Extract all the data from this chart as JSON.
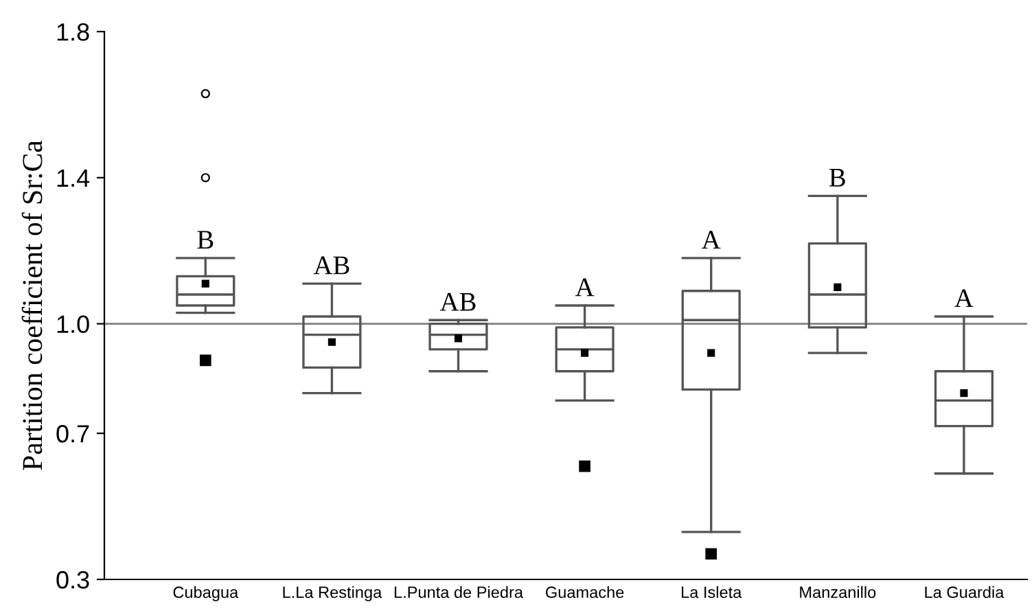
{
  "chart_data": {
    "type": "box",
    "ylabel": "Partition coefficient of Sr:Ca",
    "categories": [
      "Cubagua",
      "L.La Restinga",
      "L.Punta de Piedra",
      "Guamache",
      "La Isleta",
      "Manzanillo",
      "La Guardia"
    ],
    "boxes": [
      {
        "low": 1.03,
        "q1": 1.05,
        "median": 1.08,
        "q3": 1.13,
        "high": 1.18,
        "mean": 1.11,
        "outliers": [
          1.63,
          1.4,
          0.9
        ]
      },
      {
        "low": 0.81,
        "q1": 0.88,
        "median": 0.97,
        "q3": 1.02,
        "high": 1.11,
        "mean": 0.95
      },
      {
        "low": 0.87,
        "q1": 0.93,
        "median": 0.97,
        "q3": 1.0,
        "high": 1.01,
        "mean": 0.96
      },
      {
        "low": 0.79,
        "q1": 0.87,
        "median": 0.93,
        "q3": 0.99,
        "high": 1.05,
        "mean": 0.92,
        "outliers": [
          0.61
        ]
      },
      {
        "low": 0.43,
        "q1": 0.82,
        "median": 1.01,
        "q3": 1.09,
        "high": 1.18,
        "mean": 0.92,
        "outliers": [
          0.37
        ]
      },
      {
        "low": 0.92,
        "q1": 0.99,
        "median": 1.08,
        "q3": 1.22,
        "high": 1.35,
        "mean": 1.1
      },
      {
        "low": 0.59,
        "q1": 0.72,
        "median": 0.79,
        "q3": 0.87,
        "high": 1.02,
        "mean": 0.81
      }
    ],
    "ylim": [
      0.3,
      1.8
    ],
    "yticks": [
      0.3,
      0.7,
      {
        "value": 1.0,
        "label": "1.0"
      },
      1.4,
      1.8
    ],
    "ref_lines": [
      {
        "axis": "y",
        "value": 1.0,
        "color": "#808080"
      }
    ],
    "annotations": [
      {
        "text": "B",
        "x": "Cubagua",
        "y": 1.18
      },
      {
        "text": "AB",
        "x": "L.La Restinga",
        "y": 1.11
      },
      {
        "text": "AB",
        "x": "L.Punta de Piedra",
        "y": 1.01
      },
      {
        "text": "A",
        "x": "Guamache",
        "y": 1.05
      },
      {
        "text": "A",
        "x": "La Isleta",
        "y": 1.18
      },
      {
        "text": "B",
        "x": "Manzanillo",
        "y": 1.35
      },
      {
        "text": "A",
        "x": "La Guardia",
        "y": 1.02
      }
    ],
    "grid": false,
    "legend": false
  }
}
